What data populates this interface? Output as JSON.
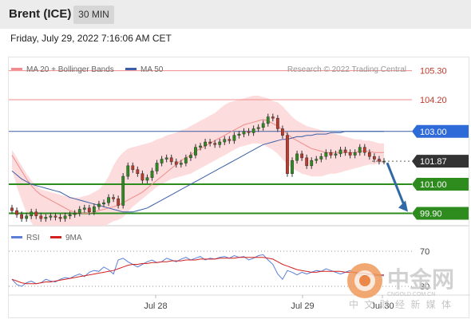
{
  "header": {
    "symbol": "Brent (ICE)",
    "timeframe": "30 MIN"
  },
  "timestamp": "Friday, July 29, 2022 7:16:06 AM CET",
  "legend": {
    "ma20": "MA 20 + Bollinger Bands",
    "ma50": "MA 50",
    "credit": "Research © 2022 Trading Central",
    "rsi": "RSI",
    "rsi_ma": "9MA"
  },
  "colors": {
    "ma20": "#f08c8c",
    "ma50": "#3a5fa8",
    "bollinger_fill": "#fcd6d6",
    "resistance": "#f08c8c",
    "pivot": "#3a5fa8",
    "support": "#2e8b1e",
    "current_price": "#333333",
    "arrow": "#2f6aa6",
    "rsi": "#5b7fd6",
    "rsi_ma": "#d42020",
    "candle_up": "#2e8b1e",
    "candle_down": "#c0392b"
  },
  "chart_data": [
    {
      "type": "candlestick",
      "title": "Brent (ICE) 30 MIN",
      "x_tick_labels": [
        "Jul 28",
        "Jul 29",
        "Jul 30"
      ],
      "ylim": [
        99.4,
        105.8
      ],
      "levels": [
        {
          "name": "resistance-2",
          "value": 105.3,
          "label": "105.30"
        },
        {
          "name": "resistance-1",
          "value": 104.2,
          "label": "104.20"
        },
        {
          "name": "pivot",
          "value": 103.0,
          "label": "103.00"
        },
        {
          "name": "last-price",
          "value": 101.87,
          "label": "101.87"
        },
        {
          "name": "support-1",
          "value": 101.0,
          "label": "101.00"
        },
        {
          "name": "support-2",
          "value": 99.9,
          "label": "99.90"
        }
      ],
      "closes": [
        100.0,
        99.85,
        99.7,
        99.8,
        99.95,
        99.8,
        99.7,
        99.75,
        99.8,
        99.75,
        99.7,
        99.8,
        99.85,
        99.9,
        100.05,
        100.1,
        99.95,
        100.15,
        100.25,
        100.3,
        100.5,
        100.45,
        100.2,
        101.3,
        101.7,
        101.55,
        101.4,
        101.15,
        101.25,
        101.5,
        101.8,
        101.95,
        102.0,
        101.85,
        101.75,
        101.8,
        102.0,
        102.1,
        102.4,
        102.45,
        102.6,
        102.55,
        102.5,
        102.6,
        102.7,
        102.65,
        102.85,
        102.9,
        103.0,
        102.95,
        103.1,
        103.15,
        103.3,
        103.55,
        103.5,
        103.1,
        102.85,
        101.4,
        101.9,
        102.15,
        102.0,
        101.7,
        101.9,
        101.95,
        102.05,
        102.2,
        102.1,
        102.15,
        102.3,
        102.2,
        102.1,
        102.2,
        102.4,
        102.2,
        102.05,
        101.95,
        101.87,
        101.87
      ],
      "bollinger_upper": [
        102.3,
        102.0,
        101.7,
        101.4,
        101.15,
        100.95,
        100.8,
        100.75,
        100.7,
        100.65,
        100.6,
        100.55,
        100.5,
        100.5,
        100.5,
        100.55,
        100.6,
        100.7,
        100.8,
        101.0,
        101.3,
        101.7,
        102.0,
        102.2,
        102.35,
        102.4,
        102.45,
        102.5,
        102.55,
        102.6,
        102.7,
        102.75,
        102.85,
        102.9,
        102.95,
        103.05,
        103.1,
        103.2,
        103.3,
        103.4,
        103.5,
        103.6,
        103.7,
        103.85,
        104.0,
        104.1,
        104.15,
        104.2,
        104.25,
        104.3,
        104.35,
        104.35,
        104.3,
        104.25,
        104.15,
        104.1,
        103.95,
        103.75,
        103.55,
        103.4,
        103.3,
        103.2,
        103.15,
        103.1,
        103.05,
        103.0,
        102.95,
        102.9,
        102.85,
        102.8,
        102.75,
        102.7,
        102.7,
        102.65,
        102.65,
        102.6,
        102.55,
        102.55
      ],
      "bollinger_lower": [
        101.6,
        100.9,
        100.4,
        99.9,
        99.55,
        99.3,
        99.15,
        99.1,
        99.1,
        99.15,
        99.2,
        99.25,
        99.3,
        99.35,
        99.35,
        99.35,
        99.3,
        99.35,
        99.35,
        99.4,
        99.5,
        99.6,
        99.65,
        99.75,
        99.95,
        100.15,
        100.3,
        100.45,
        100.6,
        100.75,
        100.9,
        101.0,
        101.1,
        101.2,
        101.25,
        101.3,
        101.35,
        101.4,
        101.5,
        101.6,
        101.7,
        101.8,
        101.9,
        102.0,
        102.1,
        102.2,
        102.3,
        102.4,
        102.45,
        102.5,
        102.55,
        102.55,
        102.5,
        102.4,
        102.3,
        102.15,
        101.95,
        101.75,
        101.6,
        101.5,
        101.4,
        101.35,
        101.3,
        101.3,
        101.3,
        101.35,
        101.4,
        101.4,
        101.45,
        101.5,
        101.55,
        101.6,
        101.65,
        101.7,
        101.75,
        101.75,
        101.8,
        101.8
      ],
      "ma20": [
        102.1,
        101.8,
        101.5,
        101.2,
        100.95,
        100.75,
        100.6,
        100.5,
        100.4,
        100.3,
        100.2,
        100.1,
        100.0,
        99.95,
        99.9,
        99.9,
        99.9,
        99.95,
        100.0,
        100.05,
        100.1,
        100.15,
        100.2,
        100.3,
        100.4,
        100.5,
        100.6,
        100.7,
        100.85,
        101.0,
        101.15,
        101.3,
        101.45,
        101.6,
        101.75,
        101.9,
        102.0,
        102.1,
        102.25,
        102.35,
        102.45,
        102.55,
        102.65,
        102.75,
        102.85,
        102.95,
        103.05,
        103.15,
        103.25,
        103.3,
        103.35,
        103.4,
        103.45,
        103.4,
        103.3,
        103.2,
        103.05,
        102.9,
        102.75,
        102.65,
        102.55,
        102.45,
        102.35,
        102.3,
        102.25,
        102.2,
        102.2,
        102.2,
        102.2,
        102.2,
        102.2,
        102.2,
        102.25,
        102.25,
        102.25,
        102.2,
        102.2,
        102.2
      ],
      "ma50": [
        101.5,
        101.35,
        101.2,
        101.1,
        101.0,
        100.95,
        100.9,
        100.85,
        100.8,
        100.75,
        100.7,
        100.6,
        100.5,
        100.45,
        100.4,
        100.35,
        100.3,
        100.25,
        100.2,
        100.15,
        100.1,
        100.05,
        100.0,
        99.95,
        99.95,
        99.95,
        100.0,
        100.05,
        100.1,
        100.2,
        100.3,
        100.4,
        100.5,
        100.6,
        100.7,
        100.8,
        100.9,
        101.0,
        101.1,
        101.2,
        101.3,
        101.4,
        101.5,
        101.6,
        101.7,
        101.8,
        101.9,
        102.0,
        102.1,
        102.2,
        102.3,
        102.4,
        102.5,
        102.55,
        102.6,
        102.65,
        102.7,
        102.7,
        102.75,
        102.8,
        102.8,
        102.85,
        102.85,
        102.9,
        102.9,
        102.9,
        102.95,
        102.95,
        102.95,
        103.0,
        103.0,
        103.0,
        103.0,
        103.0,
        103.0,
        103.0,
        103.0,
        103.0
      ]
    },
    {
      "type": "line",
      "title": "RSI",
      "ylim": [
        20,
        80
      ],
      "levels": [
        {
          "value": 70,
          "label": "70"
        },
        {
          "value": 30,
          "label": "30"
        }
      ],
      "series": [
        {
          "name": "RSI",
          "values": [
            38,
            32,
            30,
            34,
            36,
            33,
            34,
            38,
            36,
            35,
            38,
            40,
            39,
            42,
            44,
            41,
            46,
            48,
            47,
            52,
            49,
            44,
            60,
            62,
            58,
            55,
            52,
            55,
            58,
            60,
            57,
            58,
            62,
            60,
            58,
            61,
            63,
            60,
            62,
            64,
            60,
            62,
            61,
            63,
            64,
            62,
            65,
            63,
            64,
            60,
            62,
            65,
            66,
            60,
            55,
            44,
            38,
            48,
            46,
            43,
            46,
            44,
            46,
            48,
            47,
            50,
            48,
            46,
            44,
            46,
            48,
            45,
            43,
            42,
            44,
            42,
            42,
            42
          ]
        },
        {
          "name": "9MA",
          "values": [
            38,
            36,
            34,
            33,
            33,
            33,
            34,
            35,
            35,
            36,
            37,
            38,
            39,
            40,
            41,
            42,
            43,
            44,
            45,
            46,
            47,
            48,
            50,
            52,
            54,
            55,
            55,
            56,
            56,
            57,
            57,
            58,
            58,
            59,
            59,
            59,
            60,
            60,
            60,
            61,
            61,
            61,
            61,
            62,
            62,
            62,
            62,
            63,
            63,
            63,
            63,
            63,
            63,
            62,
            61,
            58,
            55,
            53,
            51,
            49,
            48,
            47,
            46,
            46,
            47,
            47,
            47,
            47,
            47,
            46,
            46,
            46,
            45,
            45,
            44,
            44,
            43,
            43
          ]
        }
      ]
    }
  ],
  "watermark": {
    "brand": "中金网",
    "url": "CNGOLD.COM.CN",
    "tagline": "中 文 财 经 新 媒 体"
  }
}
